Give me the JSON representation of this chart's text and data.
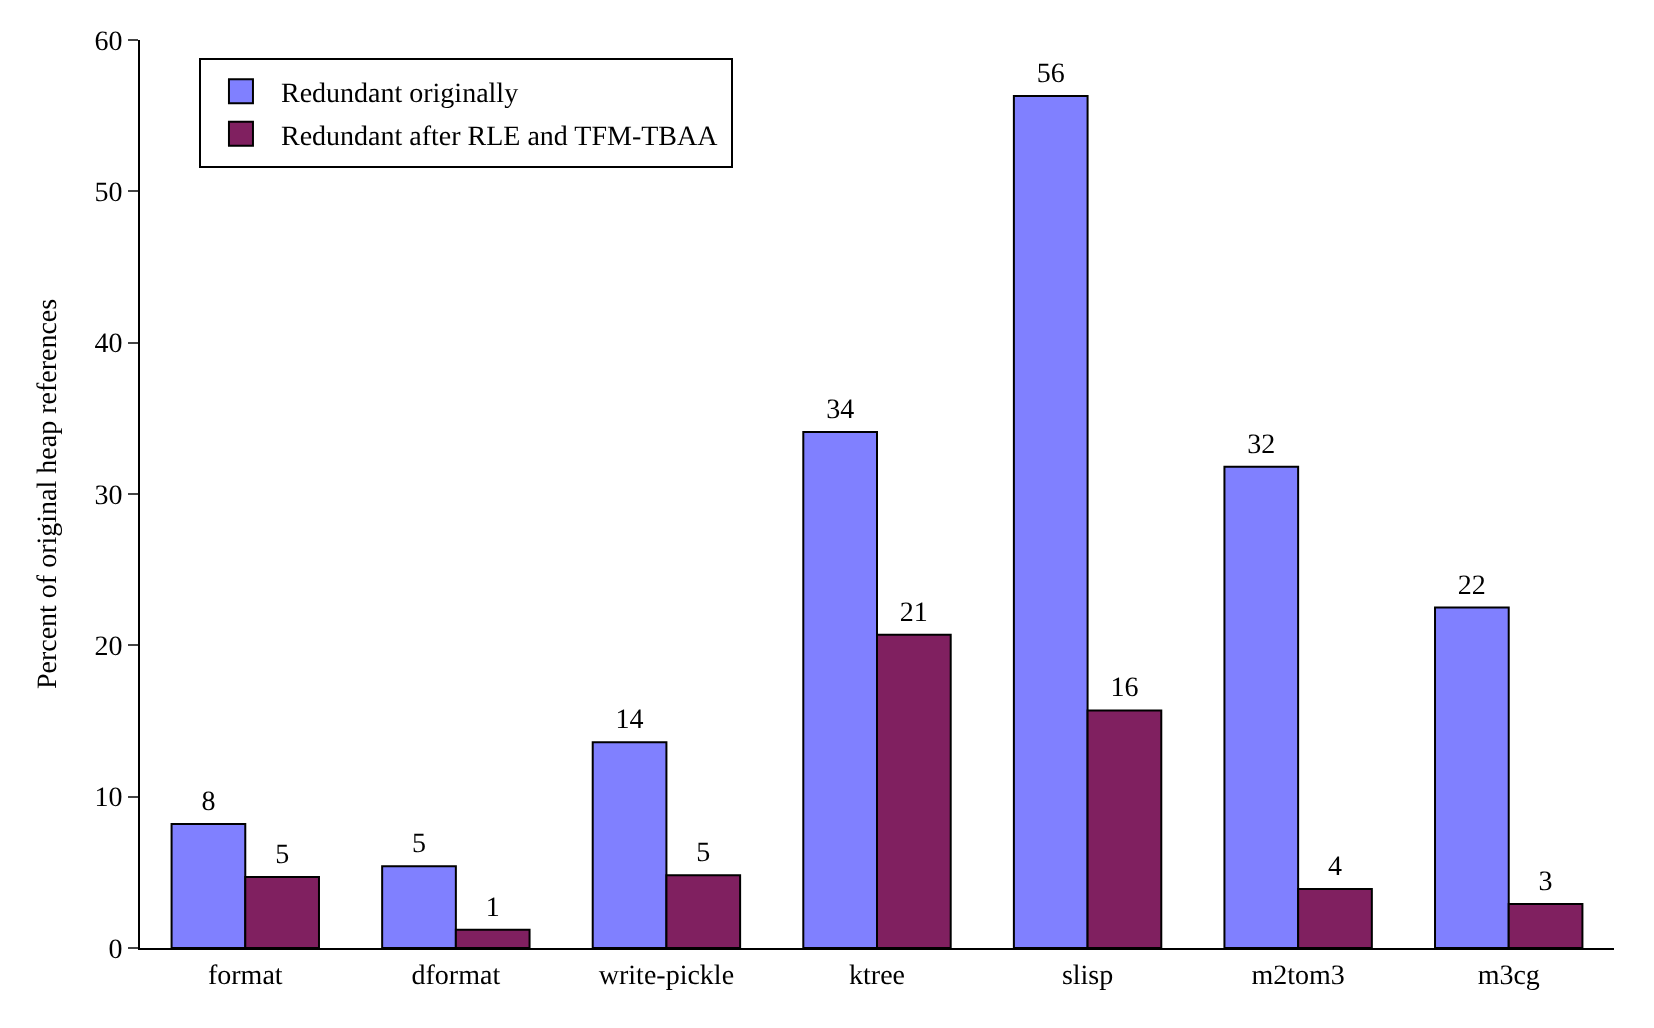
{
  "chart_data": {
    "type": "bar",
    "ylabel": "Percent of original heap references",
    "categories": [
      "format",
      "dformat",
      "write-pickle",
      "ktree",
      "slisp",
      "m2tom3",
      "m3cg"
    ],
    "series": [
      {
        "name": "Redundant originally",
        "color": "#8080ff",
        "values": [
          8.2,
          5.4,
          13.6,
          34.1,
          56.3,
          31.8,
          22.5
        ],
        "value_labels": [
          "8",
          "5",
          "14",
          "34",
          "56",
          "32",
          "22"
        ]
      },
      {
        "name": "Redundant after RLE and TFM-TBAA",
        "color": "#802060",
        "values": [
          4.7,
          1.2,
          4.8,
          20.7,
          15.7,
          3.9,
          2.9
        ],
        "value_labels": [
          "5",
          "1",
          "5",
          "21",
          "16",
          "4",
          "3"
        ]
      }
    ],
    "ylim": [
      0,
      60
    ],
    "yticks": [
      0,
      10,
      20,
      30,
      40,
      50,
      60
    ],
    "legend": "top left"
  }
}
